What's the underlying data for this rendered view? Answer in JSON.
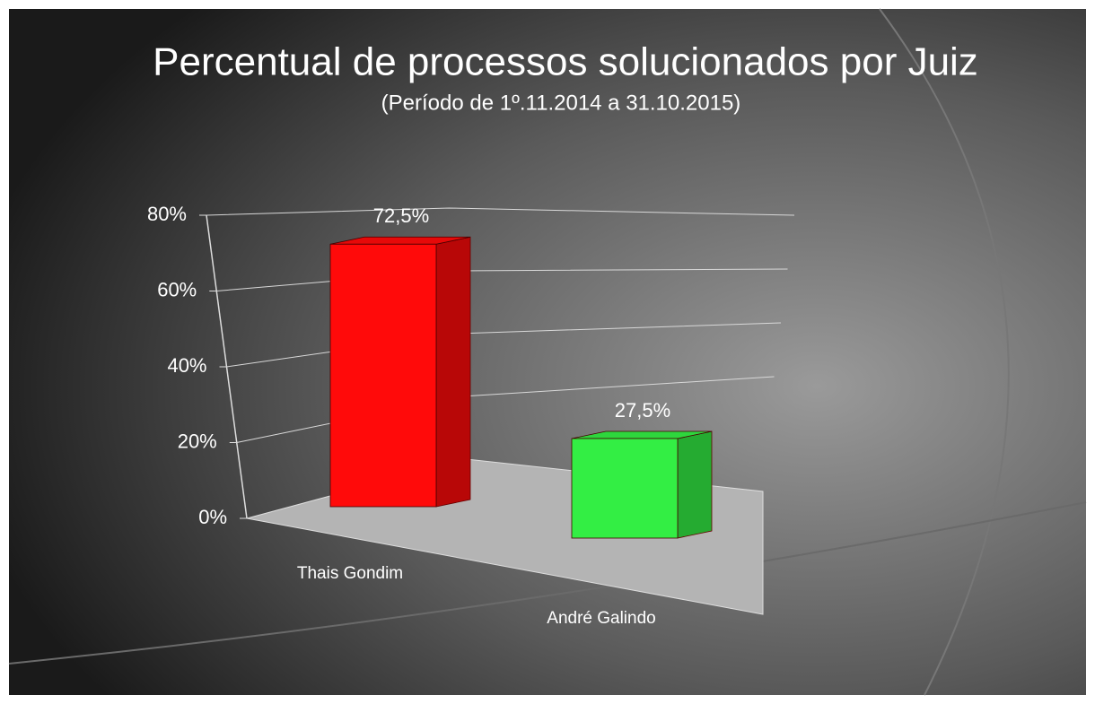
{
  "chart_data": {
    "type": "bar3d",
    "title": "Percentual de processos solucionados por Juiz",
    "subtitle": "(Período de 1º.11.2014  a  31.10.2015)",
    "categories": [
      "Thais Gondim",
      "André Galindo"
    ],
    "values": [
      72.5,
      27.5
    ],
    "value_labels": [
      "72,5%",
      "27,5%"
    ],
    "colors": [
      "#ff0a0a",
      "#33ee44"
    ],
    "ylim": [
      0,
      80
    ],
    "yticks": [
      {
        "value": 0,
        "label": "0%"
      },
      {
        "value": 20,
        "label": "20%"
      },
      {
        "value": 40,
        "label": "40%"
      },
      {
        "value": 60,
        "label": "60%"
      },
      {
        "value": 80,
        "label": "80%"
      }
    ],
    "grid": true
  }
}
